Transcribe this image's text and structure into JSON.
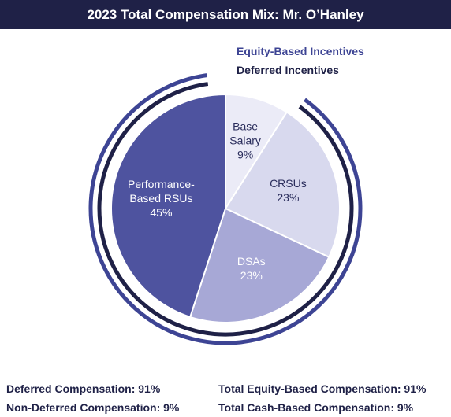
{
  "title": "2023 Total Compensation Mix: Mr. O’Hanley",
  "colors": {
    "title_bg": "#1f2147",
    "equity_ring": "#3d4494",
    "deferred_ring": "#1f2147"
  },
  "rings": {
    "equity_label": "Equity-Based Incentives",
    "deferred_label": "Deferred Incentives"
  },
  "chart_data": {
    "type": "pie",
    "slices": [
      {
        "label": [
          "Base",
          "Salary"
        ],
        "value": 9,
        "value_label": "9%",
        "color": "#ebebf7",
        "text_color": "#2a2d5c"
      },
      {
        "label": [
          "CRSUs"
        ],
        "value": 23,
        "value_label": "23%",
        "color": "#d8d9ee",
        "text_color": "#2a2d5c"
      },
      {
        "label": [
          "DSAs"
        ],
        "value": 23,
        "value_label": "23%",
        "color": "#a7a8d6",
        "text_color": "#ffffff"
      },
      {
        "label": [
          "Performance-",
          "Based RSUs"
        ],
        "value": 45,
        "value_label": "45%",
        "color": "#4e539f",
        "text_color": "#ffffff"
      }
    ]
  },
  "footer": {
    "deferred": "Deferred Compensation: 91%",
    "non_deferred": "Non-Deferred Compensation: 9%",
    "equity": "Total Equity-Based Compensation: 91%",
    "cash": "Total Cash-Based Compensation: 9%"
  }
}
